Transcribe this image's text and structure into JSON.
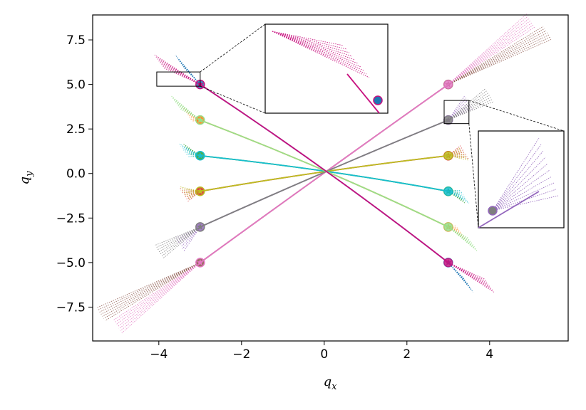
{
  "chart_data": {
    "type": "line",
    "xlabel": "q_x",
    "ylabel": "q_y",
    "xlim": [
      -5.6,
      5.9
    ],
    "ylim": [
      -9.4,
      8.9
    ],
    "xticks": [
      -4,
      -2,
      0,
      2,
      4
    ],
    "yticks": [
      -7.5,
      -5.0,
      -2.5,
      0.0,
      2.5,
      5.0,
      7.5
    ],
    "xtick_labels": [
      "−4",
      "−2",
      "0",
      "2",
      "4"
    ],
    "ytick_labels": [
      "−7.5",
      "−5.0",
      "−2.5",
      "0.0",
      "2.5",
      "5.0",
      "7.5"
    ],
    "grid": false,
    "legend": "none",
    "insets": [
      {
        "region_x": [
          -4.05,
          -3.0
        ],
        "region_y": [
          4.9,
          5.7
        ],
        "connected_to": "top-center"
      },
      {
        "region_x": [
          2.9,
          3.5
        ],
        "region_y": [
          2.8,
          4.1
        ],
        "connected_to": "right-middle"
      }
    ],
    "series": [
      {
        "color": "#1f77b4",
        "start": [
          -3.0,
          5.0
        ],
        "end": [
          3.0,
          -5.0
        ],
        "spray_end": [
          3.5,
          -6.3
        ]
      },
      {
        "color": "#ff7f0e",
        "start": [
          -3.0,
          3.0
        ],
        "end": [
          3.0,
          -3.0
        ],
        "spray_end": [
          3.3,
          -3.3
        ]
      },
      {
        "color": "#2ca02c",
        "start": [
          -3.0,
          1.0
        ],
        "end": [
          3.0,
          -1.0
        ],
        "spray_end": [
          3.3,
          -1.3
        ]
      },
      {
        "color": "#d62728",
        "start": [
          -3.0,
          -1.0
        ],
        "end": [
          3.0,
          1.0
        ],
        "spray_end": [
          3.4,
          1.2
        ]
      },
      {
        "color": "#9467bd",
        "start": [
          -3.0,
          -3.0
        ],
        "end": [
          3.0,
          3.0
        ],
        "spray_end": [
          3.5,
          4.0
        ]
      },
      {
        "color": "#8c564b",
        "start": [
          -3.0,
          -5.0
        ],
        "end": [
          3.0,
          5.0
        ],
        "spray_end": [
          5.4,
          7.9
        ]
      },
      {
        "color": "#e377c2",
        "start": [
          3.0,
          5.0
        ],
        "end": [
          -3.0,
          -5.0
        ],
        "spray_end": [
          -5.0,
          -8.6
        ]
      },
      {
        "color": "#7f7f7f",
        "start": [
          3.0,
          3.0
        ],
        "end": [
          -3.0,
          -3.0
        ],
        "spray_end": [
          -4.0,
          -4.4
        ]
      },
      {
        "color": "#bcbd22",
        "start": [
          3.0,
          1.0
        ],
        "end": [
          -3.0,
          -1.0
        ],
        "spray_end": [
          -3.4,
          -1.1
        ]
      },
      {
        "color": "#17becf",
        "start": [
          3.0,
          -1.0
        ],
        "end": [
          -3.0,
          1.0
        ],
        "spray_end": [
          -3.4,
          1.3
        ]
      },
      {
        "color": "#98df8a",
        "start": [
          3.0,
          -3.0
        ],
        "end": [
          -3.0,
          3.0
        ],
        "spray_end": [
          -3.6,
          4.0
        ]
      },
      {
        "color": "#c7117f",
        "start": [
          3.0,
          -5.0
        ],
        "end": [
          -3.0,
          5.0
        ],
        "spray_end": [
          -4.0,
          6.3
        ]
      }
    ]
  }
}
